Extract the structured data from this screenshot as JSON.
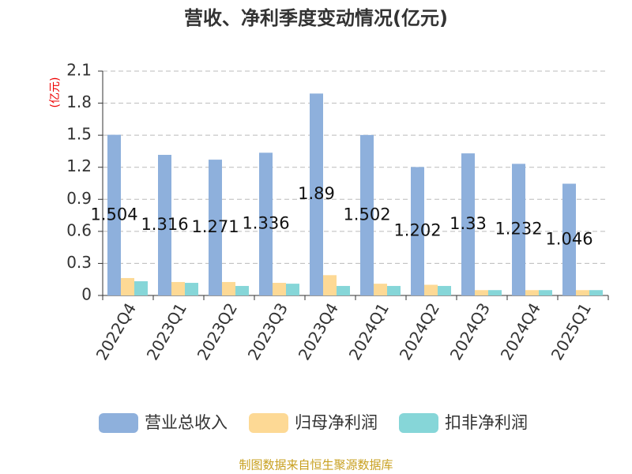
{
  "chart_data": {
    "type": "bar",
    "title": "营收、净利季度变动情况(亿元)",
    "y_label": "(亿元)",
    "categories": [
      "2022Q4",
      "2023Q1",
      "2023Q2",
      "2023Q3",
      "2023Q4",
      "2024Q1",
      "2024Q2",
      "2024Q3",
      "2024Q4",
      "2025Q1"
    ],
    "series": [
      {
        "name": "营业总收入",
        "color": "#8eb0dc",
        "values": [
          1.504,
          1.316,
          1.271,
          1.336,
          1.89,
          1.502,
          1.202,
          1.33,
          1.232,
          1.046
        ],
        "labels": true
      },
      {
        "name": "归母净利润",
        "color": "#fdd995",
        "values": [
          0.163,
          0.126,
          0.126,
          0.118,
          0.19,
          0.11,
          0.1,
          0.05,
          0.05,
          0.05
        ]
      },
      {
        "name": "扣非净利润",
        "color": "#86d6d8",
        "values": [
          0.133,
          0.118,
          0.089,
          0.11,
          0.089,
          0.089,
          0.089,
          0.05,
          0.05,
          0.05
        ]
      }
    ],
    "ylim": [
      0,
      2.1
    ],
    "yticks": [
      0,
      0.3,
      0.6,
      0.9,
      1.2,
      1.5,
      1.8,
      2.1
    ],
    "grid": true,
    "legend": "bottom",
    "source": "制图数据来自恒生聚源数据库"
  }
}
